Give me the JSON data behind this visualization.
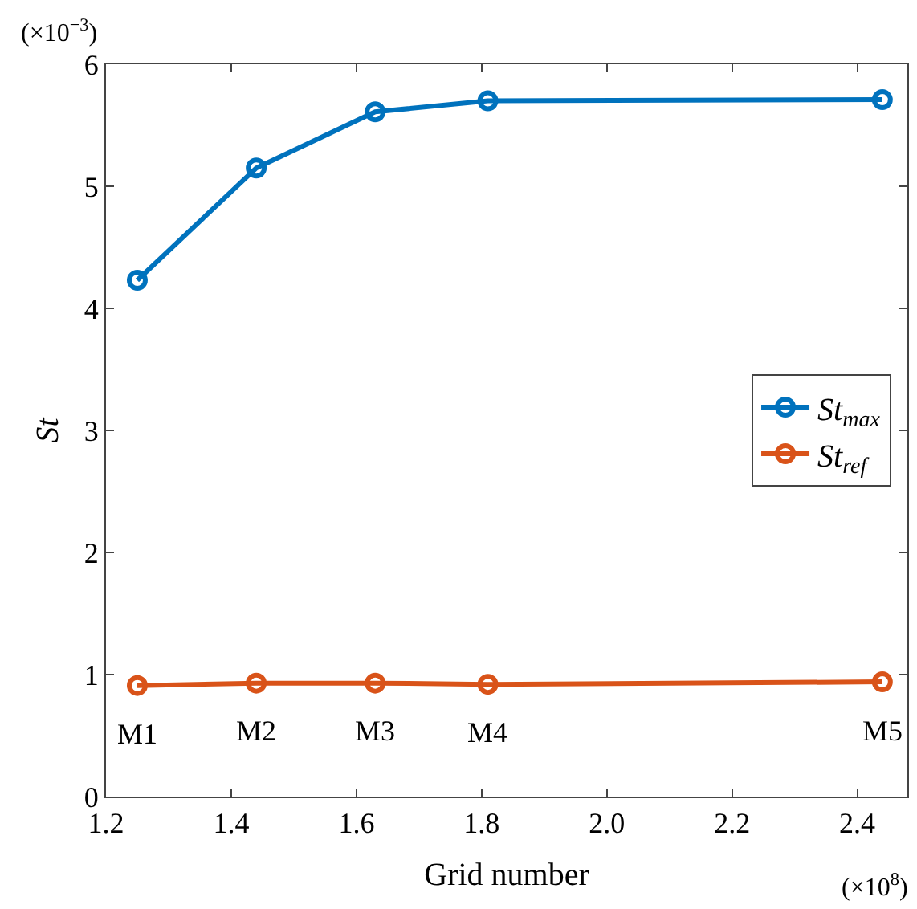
{
  "chart_data": {
    "type": "line",
    "xlabel": "Grid number",
    "ylabel": "St",
    "x": [
      1.25,
      1.44,
      1.63,
      1.81,
      2.44
    ],
    "series": [
      {
        "name": "St$_{max}$",
        "color": "#0072bd",
        "values": [
          4.23,
          5.15,
          5.61,
          5.7,
          5.71
        ]
      },
      {
        "name": "St$_{ref}$",
        "color": "#d95319",
        "values": [
          0.91,
          0.93,
          0.93,
          0.92,
          0.94
        ]
      }
    ],
    "xlim": [
      1.2,
      2.48
    ],
    "xticks": [
      {
        "value": 1.2,
        "label": "1.2"
      },
      {
        "value": 1.4,
        "label": "1.4"
      },
      {
        "value": 1.6,
        "label": "1.6"
      },
      {
        "value": 1.8,
        "label": "1.8"
      },
      {
        "value": 2.0,
        "label": "2.0"
      },
      {
        "value": 2.2,
        "label": "2.2"
      },
      {
        "value": 2.4,
        "label": "2.4"
      }
    ],
    "ylim": [
      0,
      6
    ],
    "yticks": [
      0,
      1,
      2,
      3,
      4,
      5,
      6
    ],
    "annotations": [
      "(×10$^{−3}$)",
      "(×10$^{8}$)",
      {
        "text": "M1",
        "x": 1.25,
        "y": 0.91
      },
      {
        "text": "M2",
        "x": 1.44,
        "y": 0.93
      },
      {
        "text": "M3",
        "x": 1.63,
        "y": 0.93
      },
      {
        "text": "M4",
        "x": 1.81,
        "y": 0.92
      },
      {
        "text": "M5",
        "x": 2.44,
        "y": 0.94
      }
    ],
    "legend": "right",
    "marker": "circle",
    "line_style": "solid"
  }
}
